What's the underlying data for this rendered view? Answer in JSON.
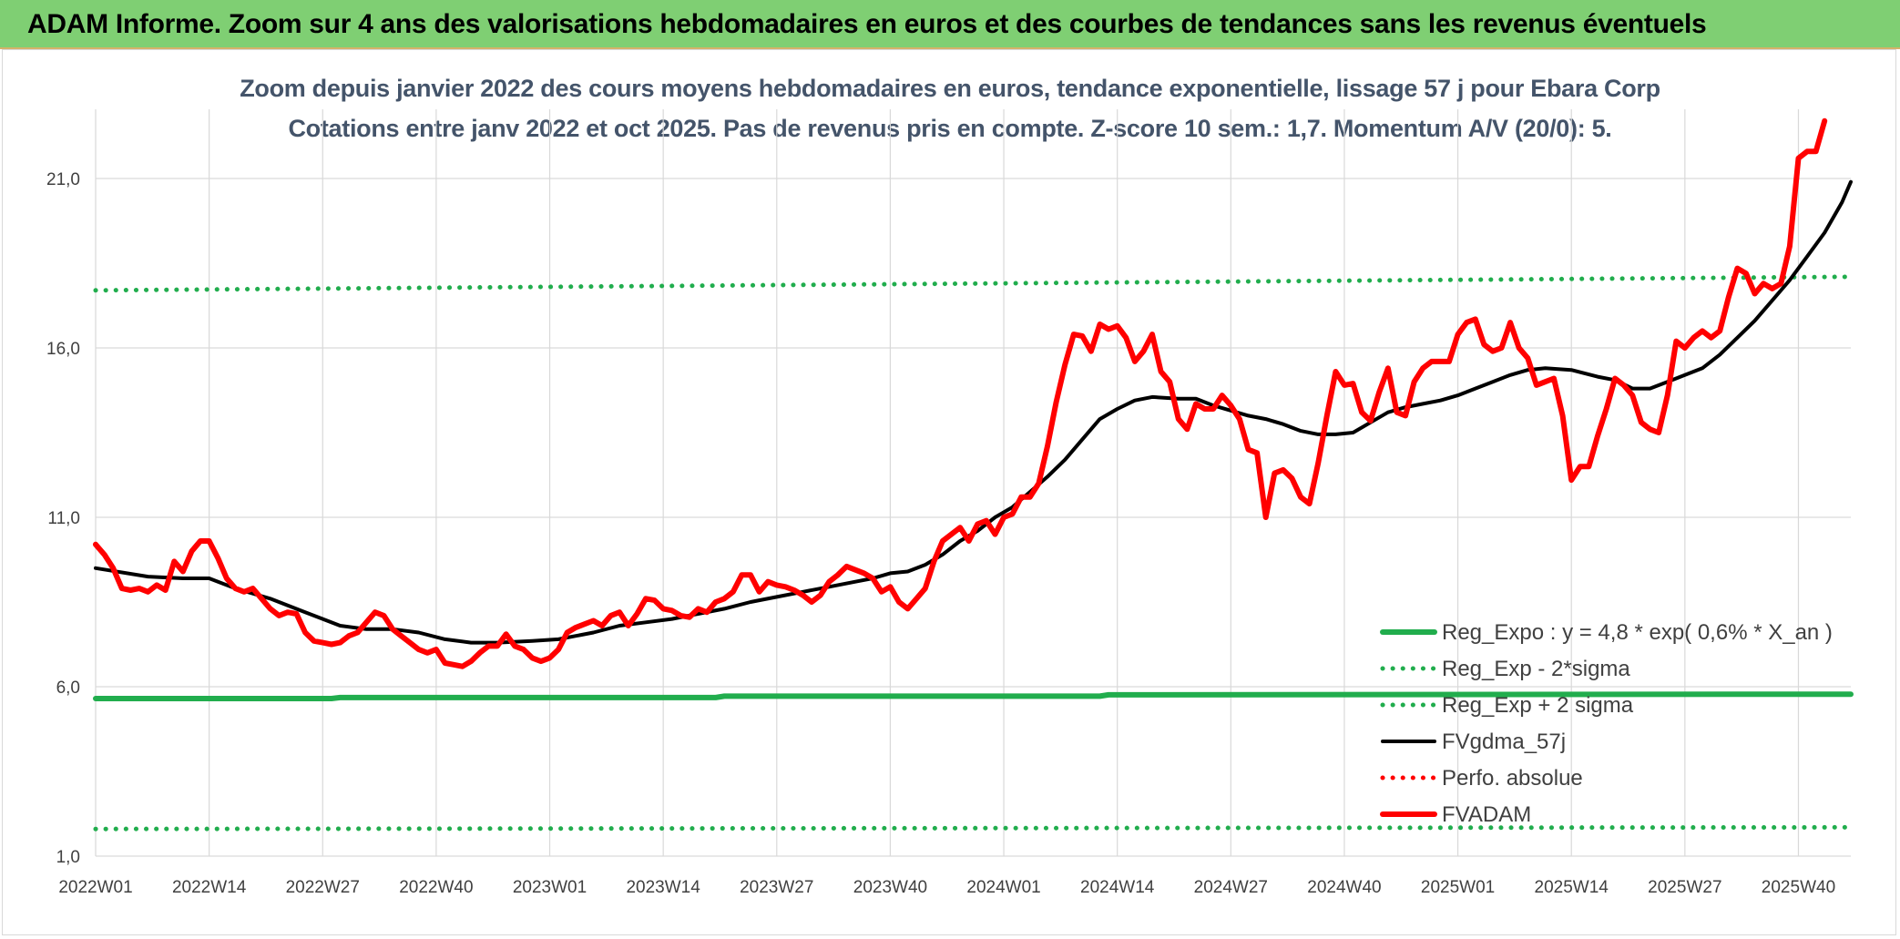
{
  "banner": {
    "title": "ADAM Informe. Zoom sur 4 ans des valorisations hebdomadaires en euros et des courbes de tendances sans les revenus éventuels"
  },
  "colors": {
    "banner_bg": "#7fcf73",
    "reg_green": "#21ad4d",
    "black": "#000000",
    "red": "#ff0000",
    "title_gray": "#44546a"
  },
  "chart_data": {
    "type": "line",
    "title": "Zoom depuis janvier 2022 des cours moyens hebdomadaires en euros, tendance exponentielle, lissage 57 j pour Ebara Corp",
    "subtitle": "Cotations entre janv 2022 et oct 2025. Pas de revenus pris en compte. Z-score 10 sem.: 1,7. Momentum A/V (20/0): 5.",
    "xlabel": "",
    "ylabel": "",
    "x_ticks": [
      "2022W01",
      "2022W14",
      "2022W27",
      "2022W40",
      "2023W01",
      "2023W14",
      "2023W27",
      "2023W40",
      "2024W01",
      "2024W14",
      "2024W27",
      "2024W40",
      "2025W01",
      "2025W14",
      "2025W27",
      "2025W40"
    ],
    "y_ticks": [
      "1,0",
      "6,0",
      "11,0",
      "16,0",
      "21,0"
    ],
    "ylim": [
      1,
      22
    ],
    "x_index_range": [
      0,
      201
    ],
    "grid": "vertical and horizontal",
    "legend_position": "bottom-right",
    "series": [
      {
        "name": "Reg_Expo : y = 4,8 * exp( 0,6% *  X_an )",
        "style": "solid-thick",
        "color": "#21ad4d",
        "points": [
          [
            0,
            5.65
          ],
          [
            27,
            5.65
          ],
          [
            28,
            5.68
          ],
          [
            71,
            5.68
          ],
          [
            72,
            5.72
          ],
          [
            115,
            5.72
          ],
          [
            116,
            5.76
          ],
          [
            201,
            5.78
          ]
        ]
      },
      {
        "name": "Reg_Exp - 2*sigma",
        "style": "dotted",
        "color": "#21ad4d",
        "points": [
          [
            0,
            1.8
          ],
          [
            201,
            1.85
          ]
        ]
      },
      {
        "name": "Reg_Exp + 2 sigma",
        "style": "dotted",
        "color": "#21ad4d",
        "points": [
          [
            0,
            17.7
          ],
          [
            201,
            18.1
          ]
        ]
      },
      {
        "name": "FVgdma_57j",
        "style": "solid",
        "color": "#000000",
        "points": [
          [
            0,
            9.5
          ],
          [
            6,
            9.25
          ],
          [
            10,
            9.2
          ],
          [
            13,
            9.2
          ],
          [
            16,
            8.9
          ],
          [
            20,
            8.6
          ],
          [
            24,
            8.2
          ],
          [
            26,
            8.0
          ],
          [
            28,
            7.8
          ],
          [
            31,
            7.7
          ],
          [
            34,
            7.7
          ],
          [
            37,
            7.6
          ],
          [
            40,
            7.4
          ],
          [
            43,
            7.3
          ],
          [
            46,
            7.3
          ],
          [
            50,
            7.35
          ],
          [
            53,
            7.4
          ],
          [
            55,
            7.5
          ],
          [
            57,
            7.6
          ],
          [
            60,
            7.8
          ],
          [
            63,
            7.9
          ],
          [
            66,
            8.0
          ],
          [
            69,
            8.15
          ],
          [
            72,
            8.3
          ],
          [
            75,
            8.5
          ],
          [
            78,
            8.65
          ],
          [
            81,
            8.8
          ],
          [
            84,
            8.95
          ],
          [
            87,
            9.1
          ],
          [
            89,
            9.2
          ],
          [
            91,
            9.35
          ],
          [
            93,
            9.4
          ],
          [
            95,
            9.6
          ],
          [
            97,
            9.9
          ],
          [
            99,
            10.3
          ],
          [
            101,
            10.6
          ],
          [
            103,
            11.0
          ],
          [
            105,
            11.3
          ],
          [
            107,
            11.75
          ],
          [
            109,
            12.2
          ],
          [
            111,
            12.7
          ],
          [
            113,
            13.3
          ],
          [
            115,
            13.9
          ],
          [
            117,
            14.2
          ],
          [
            119,
            14.45
          ],
          [
            121,
            14.55
          ],
          [
            124,
            14.5
          ],
          [
            126,
            14.5
          ],
          [
            128,
            14.3
          ],
          [
            130,
            14.15
          ],
          [
            132,
            14.0
          ],
          [
            134,
            13.9
          ],
          [
            136,
            13.75
          ],
          [
            138,
            13.55
          ],
          [
            140,
            13.45
          ],
          [
            142,
            13.45
          ],
          [
            144,
            13.5
          ],
          [
            146,
            13.8
          ],
          [
            148,
            14.1
          ],
          [
            150,
            14.25
          ],
          [
            152,
            14.35
          ],
          [
            154,
            14.45
          ],
          [
            156,
            14.6
          ],
          [
            158,
            14.8
          ],
          [
            160,
            15.0
          ],
          [
            162,
            15.2
          ],
          [
            164,
            15.35
          ],
          [
            166,
            15.4
          ],
          [
            169,
            15.35
          ],
          [
            172,
            15.15
          ],
          [
            174,
            15.05
          ],
          [
            176,
            14.8
          ],
          [
            178,
            14.8
          ],
          [
            180,
            15.0
          ],
          [
            182,
            15.2
          ],
          [
            184,
            15.4
          ],
          [
            186,
            15.8
          ],
          [
            188,
            16.3
          ],
          [
            190,
            16.8
          ],
          [
            192,
            17.4
          ],
          [
            194,
            18.0
          ],
          [
            196,
            18.7
          ],
          [
            198,
            19.4
          ],
          [
            200,
            20.3
          ],
          [
            201,
            20.9
          ]
        ]
      },
      {
        "name": "Perfo. absolue",
        "style": "dotted",
        "color": "#ff0000",
        "points": []
      },
      {
        "name": "FVADAM",
        "style": "solid-thick",
        "color": "#ff0000",
        "points": [
          [
            0,
            10.2
          ],
          [
            1,
            9.9
          ],
          [
            2,
            9.5
          ],
          [
            3,
            8.9
          ],
          [
            4,
            8.85
          ],
          [
            5,
            8.9
          ],
          [
            6,
            8.8
          ],
          [
            7,
            9.0
          ],
          [
            8,
            8.85
          ],
          [
            9,
            9.7
          ],
          [
            10,
            9.4
          ],
          [
            11,
            10.0
          ],
          [
            12,
            10.3
          ],
          [
            13,
            10.3
          ],
          [
            14,
            9.8
          ],
          [
            15,
            9.2
          ],
          [
            16,
            8.9
          ],
          [
            17,
            8.8
          ],
          [
            18,
            8.9
          ],
          [
            19,
            8.6
          ],
          [
            20,
            8.3
          ],
          [
            21,
            8.1
          ],
          [
            22,
            8.2
          ],
          [
            23,
            8.15
          ],
          [
            24,
            7.6
          ],
          [
            25,
            7.35
          ],
          [
            26,
            7.3
          ],
          [
            27,
            7.25
          ],
          [
            28,
            7.3
          ],
          [
            29,
            7.5
          ],
          [
            30,
            7.6
          ],
          [
            31,
            7.9
          ],
          [
            32,
            8.2
          ],
          [
            33,
            8.1
          ],
          [
            34,
            7.7
          ],
          [
            35,
            7.5
          ],
          [
            36,
            7.3
          ],
          [
            37,
            7.1
          ],
          [
            38,
            7.0
          ],
          [
            39,
            7.1
          ],
          [
            40,
            6.7
          ],
          [
            41,
            6.65
          ],
          [
            42,
            6.6
          ],
          [
            43,
            6.75
          ],
          [
            44,
            7.0
          ],
          [
            45,
            7.2
          ],
          [
            46,
            7.2
          ],
          [
            47,
            7.55
          ],
          [
            48,
            7.2
          ],
          [
            49,
            7.1
          ],
          [
            50,
            6.85
          ],
          [
            51,
            6.75
          ],
          [
            52,
            6.85
          ],
          [
            53,
            7.1
          ],
          [
            54,
            7.6
          ],
          [
            55,
            7.75
          ],
          [
            56,
            7.85
          ],
          [
            57,
            7.95
          ],
          [
            58,
            7.8
          ],
          [
            59,
            8.1
          ],
          [
            60,
            8.2
          ],
          [
            61,
            7.8
          ],
          [
            62,
            8.15
          ],
          [
            63,
            8.6
          ],
          [
            64,
            8.55
          ],
          [
            65,
            8.3
          ],
          [
            66,
            8.25
          ],
          [
            67,
            8.1
          ],
          [
            68,
            8.05
          ],
          [
            69,
            8.3
          ],
          [
            70,
            8.2
          ],
          [
            71,
            8.5
          ],
          [
            72,
            8.6
          ],
          [
            73,
            8.8
          ],
          [
            74,
            9.3
          ],
          [
            75,
            9.3
          ],
          [
            76,
            8.8
          ],
          [
            77,
            9.1
          ],
          [
            78,
            9.0
          ],
          [
            79,
            8.95
          ],
          [
            80,
            8.85
          ],
          [
            81,
            8.7
          ],
          [
            82,
            8.5
          ],
          [
            83,
            8.7
          ],
          [
            84,
            9.1
          ],
          [
            85,
            9.3
          ],
          [
            86,
            9.55
          ],
          [
            87,
            9.45
          ],
          [
            88,
            9.35
          ],
          [
            89,
            9.2
          ],
          [
            90,
            8.8
          ],
          [
            91,
            8.95
          ],
          [
            92,
            8.5
          ],
          [
            93,
            8.3
          ],
          [
            94,
            8.6
          ],
          [
            95,
            8.9
          ],
          [
            96,
            9.7
          ],
          [
            97,
            10.3
          ],
          [
            98,
            10.5
          ],
          [
            99,
            10.7
          ],
          [
            100,
            10.3
          ],
          [
            101,
            10.8
          ],
          [
            102,
            10.9
          ],
          [
            103,
            10.5
          ],
          [
            104,
            11.0
          ],
          [
            105,
            11.1
          ],
          [
            106,
            11.6
          ],
          [
            107,
            11.6
          ],
          [
            108,
            12.0
          ],
          [
            109,
            13.1
          ],
          [
            110,
            14.4
          ],
          [
            111,
            15.5
          ],
          [
            112,
            16.4
          ],
          [
            113,
            16.35
          ],
          [
            114,
            15.9
          ],
          [
            115,
            16.7
          ],
          [
            116,
            16.55
          ],
          [
            117,
            16.65
          ],
          [
            118,
            16.3
          ],
          [
            119,
            15.6
          ],
          [
            120,
            15.9
          ],
          [
            121,
            16.4
          ],
          [
            122,
            15.3
          ],
          [
            123,
            15.0
          ],
          [
            124,
            13.9
          ],
          [
            125,
            13.6
          ],
          [
            126,
            14.35
          ],
          [
            127,
            14.2
          ],
          [
            128,
            14.2
          ],
          [
            129,
            14.6
          ],
          [
            130,
            14.3
          ],
          [
            131,
            13.9
          ],
          [
            132,
            13.0
          ],
          [
            133,
            12.9
          ],
          [
            134,
            11.0
          ],
          [
            135,
            12.3
          ],
          [
            136,
            12.4
          ],
          [
            137,
            12.15
          ],
          [
            138,
            11.6
          ],
          [
            139,
            11.4
          ],
          [
            140,
            12.6
          ],
          [
            141,
            14.0
          ],
          [
            142,
            15.3
          ],
          [
            143,
            14.9
          ],
          [
            144,
            14.95
          ],
          [
            145,
            14.1
          ],
          [
            146,
            13.85
          ],
          [
            147,
            14.7
          ],
          [
            148,
            15.4
          ],
          [
            149,
            14.1
          ],
          [
            150,
            14.0
          ],
          [
            151,
            15.0
          ],
          [
            152,
            15.4
          ],
          [
            153,
            15.6
          ],
          [
            154,
            15.6
          ],
          [
            155,
            15.6
          ],
          [
            156,
            16.4
          ],
          [
            157,
            16.75
          ],
          [
            158,
            16.85
          ],
          [
            159,
            16.1
          ],
          [
            160,
            15.9
          ],
          [
            161,
            16.0
          ],
          [
            162,
            16.75
          ],
          [
            163,
            16.0
          ],
          [
            164,
            15.7
          ],
          [
            165,
            14.9
          ],
          [
            166,
            15.0
          ],
          [
            167,
            15.1
          ],
          [
            168,
            14.0
          ],
          [
            169,
            12.1
          ],
          [
            170,
            12.5
          ],
          [
            171,
            12.5
          ],
          [
            172,
            13.4
          ],
          [
            173,
            14.2
          ],
          [
            174,
            15.1
          ],
          [
            175,
            14.9
          ],
          [
            176,
            14.6
          ],
          [
            177,
            13.8
          ],
          [
            178,
            13.6
          ],
          [
            179,
            13.5
          ],
          [
            180,
            14.6
          ],
          [
            181,
            16.2
          ],
          [
            182,
            16.0
          ],
          [
            183,
            16.3
          ],
          [
            184,
            16.5
          ],
          [
            185,
            16.3
          ],
          [
            186,
            16.5
          ],
          [
            187,
            17.5
          ],
          [
            188,
            18.35
          ],
          [
            189,
            18.2
          ],
          [
            190,
            17.6
          ],
          [
            191,
            17.9
          ],
          [
            192,
            17.75
          ],
          [
            193,
            17.9
          ],
          [
            194,
            19.0
          ],
          [
            195,
            21.6
          ],
          [
            196,
            21.8
          ],
          [
            197,
            21.8
          ],
          [
            198,
            22.7
          ]
        ]
      }
    ]
  }
}
